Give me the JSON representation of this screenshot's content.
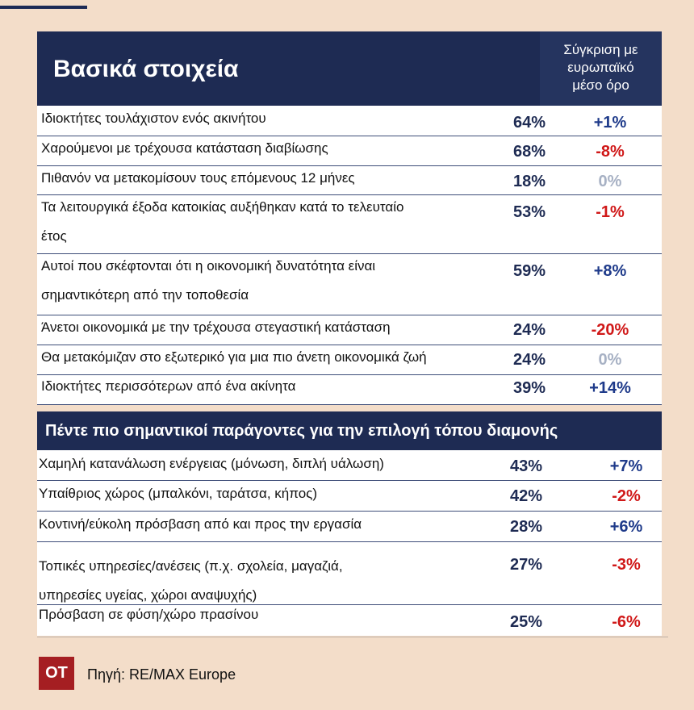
{
  "logo_text": "ΟΤ",
  "source": "Πηγή: RE/MAX Europe",
  "section1": {
    "title": "Βασικά στοιχεία",
    "compare_header_lines": [
      "Σύγκριση με",
      "ευρωπαϊκό",
      "μέσο όρο"
    ],
    "rows": [
      {
        "lines": [
          "Ιδιοκτήτες τουλάχιστον ενός ακινήτου"
        ],
        "pct": "64%",
        "diff": "+1%",
        "sign": "pos"
      },
      {
        "lines": [
          "Χαρούμενοι με τρέχουσα κατάσταση διαβίωσης"
        ],
        "pct": "68%",
        "diff": "-8%",
        "sign": "neg"
      },
      {
        "lines": [
          "Πιθανόν να μετακομίσουν τους επόμενους 12 μήνες"
        ],
        "pct": "18%",
        "diff": "0%",
        "sign": "zero"
      },
      {
        "lines": [
          "Τα λειτουργικά έξοδα κατοικίας αυξήθηκαν κατά το τελευταίο",
          "έτος"
        ],
        "pct": "53%",
        "diff": "-1%",
        "sign": "neg"
      },
      {
        "lines": [
          "Αυτοί που σκέφτονται ότι η οικονομική δυνατότητα είναι",
          "σημαντικότερη από την τοποθεσία"
        ],
        "pct": "59%",
        "diff": "+8%",
        "sign": "pos"
      },
      {
        "lines": [
          "Άνετοι οικονομικά με την τρέχουσα στεγαστική κατάσταση"
        ],
        "pct": "24%",
        "diff": "-20%",
        "sign": "neg"
      },
      {
        "lines": [
          "Θα μετακόμιζαν στο εξωτερικό για μια πιο άνετη οικονομικά ζωή"
        ],
        "pct": "24%",
        "diff": "0%",
        "sign": "zero"
      },
      {
        "lines": [
          "Ιδιοκτήτες περισσότερων από ένα ακίνητα"
        ],
        "pct": "39%",
        "diff": "+14%",
        "sign": "pos"
      }
    ]
  },
  "section2": {
    "title": "Πέντε πιο σημαντικοί παράγοντες για την επιλογή τόπου διαμονής",
    "rows": [
      {
        "lines": [
          "Χαμηλή κατανάλωση ενέργειας (μόνωση, διπλή υάλωση)"
        ],
        "pct": "43%",
        "diff": "+7%",
        "sign": "pos"
      },
      {
        "lines": [
          "Υπαίθριος χώρος (μπαλκόνι, ταράτσα, κήπος)"
        ],
        "pct": "42%",
        "diff": "-2%",
        "sign": "neg"
      },
      {
        "lines": [
          "Κοντινή/εύκολη πρόσβαση από και προς την εργασία"
        ],
        "pct": "28%",
        "diff": "+6%",
        "sign": "pos"
      },
      {
        "lines": [
          "Τοπικές υπηρεσίες/ανέσεις (π.χ. σχολεία, μαγαζιά,",
          "υπηρεσίες υγείας, χώροι αναψυχής)"
        ],
        "pct": "27%",
        "diff": "-3%",
        "sign": "neg"
      },
      {
        "lines": [
          "Πρόσβαση σε φύση/χώρο πρασίνου"
        ],
        "pct": "25%",
        "diff": "-6%",
        "sign": "neg"
      }
    ]
  }
}
